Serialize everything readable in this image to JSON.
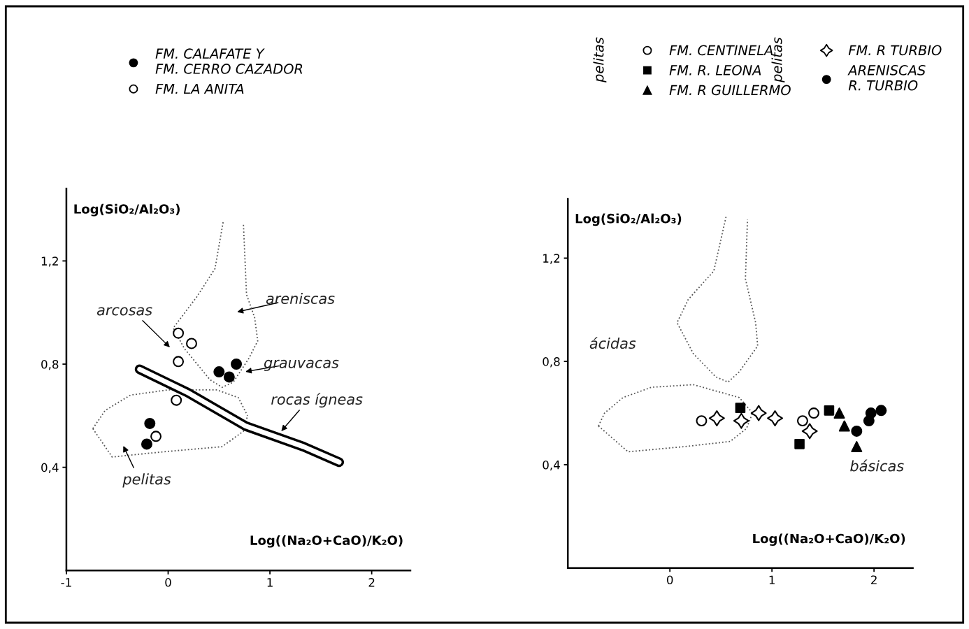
{
  "chart_data": [
    {
      "type": "scatter",
      "xlabel": "Log((Na₂O+CaO)/K₂O)",
      "ylabel": "Log(SiO₂/Al₂O₃)",
      "xlim": [
        -1,
        2.38
      ],
      "ylim": [
        0,
        1.48
      ],
      "xticks": [
        -1,
        0,
        1,
        2
      ],
      "yticks": [
        {
          "value": 0.4,
          "label": "0,4"
        },
        {
          "value": 0.8,
          "label": "0,8"
        },
        {
          "value": 1.2,
          "label": "1,2"
        }
      ],
      "grid": false,
      "legend": "top left",
      "series": [
        {
          "name": "FM. CALAFATE Y\nFM. CERRO CAZADOR",
          "color": "#000000",
          "marker": "circle",
          "x": [
            0.67,
            0.5,
            0.6,
            -0.18,
            -0.21
          ],
          "values": [
            0.8,
            0.77,
            0.75,
            0.57,
            0.49
          ]
        },
        {
          "name": "FM. LA ANITA",
          "color": "#ffffff",
          "marker": "circle",
          "x": [
            0.1,
            0.23,
            0.1,
            0.08,
            -0.12
          ],
          "values": [
            0.92,
            0.88,
            0.81,
            0.66,
            0.52
          ]
        },
        {
          "type": "line",
          "color": "#555555",
          "line_style": "dotted",
          "x": [
            0.54,
            0.46,
            0.28,
            0.05,
            0.16,
            0.41,
            0.53,
            0.64,
            0.79,
            0.88,
            0.85,
            0.77,
            0.74
          ],
          "values": [
            1.35,
            1.17,
            1.06,
            0.94,
            0.86,
            0.74,
            0.71,
            0.73,
            0.82,
            0.89,
            0.98,
            1.07,
            1.34
          ]
        },
        {
          "type": "line",
          "color": "#555555",
          "line_style": "dotted",
          "x": [
            -0.74,
            -0.55,
            -0.05,
            0.53,
            0.74,
            0.78
          ],
          "values": [
            0.55,
            0.44,
            0.46,
            0.48,
            0.54,
            0.6
          ]
        },
        {
          "type": "line",
          "color": "#555555",
          "line_style": "dotted",
          "x": [
            -0.74,
            -0.62,
            -0.37,
            0.0,
            0.48,
            0.69,
            0.78
          ],
          "values": [
            0.55,
            0.62,
            0.68,
            0.7,
            0.7,
            0.67,
            0.6
          ]
        },
        {
          "type": "line",
          "color": "#000000",
          "line_style": "solid",
          "x": [
            -0.28,
            0.19,
            0.76,
            1.33,
            1.68
          ],
          "values": [
            0.78,
            0.69,
            0.56,
            0.48,
            0.42
          ]
        }
      ],
      "annotations": [
        "arcosas",
        "areniscas",
        "grauvacas",
        "rocas ígneas",
        "pelitas"
      ]
    },
    {
      "type": "scatter",
      "xlabel": "Log((Na₂O+CaO)/K₂O)",
      "ylabel": "Log(SiO₂/Al₂O₃)",
      "xlim": [
        -1,
        2.38
      ],
      "ylim": [
        0,
        1.43
      ],
      "xticks": [
        0,
        1,
        2
      ],
      "yticks": [
        {
          "value": 0.4,
          "label": "0,4"
        },
        {
          "value": 0.8,
          "label": "0,8"
        },
        {
          "value": 1.2,
          "label": "1,2"
        }
      ],
      "grid": false,
      "legend": "top right",
      "series": [
        {
          "name": "FM. CENTINELA",
          "color": "#ffffff",
          "marker": "circle",
          "x": [
            0.31,
            1.3,
            1.41
          ],
          "values": [
            0.57,
            0.57,
            0.6
          ]
        },
        {
          "name": "FM. R. LEONA",
          "color": "#000000",
          "marker": "square",
          "x": [
            0.69,
            1.27,
            1.56
          ],
          "values": [
            0.62,
            0.48,
            0.61
          ]
        },
        {
          "name": "FM. R GUILLERMO",
          "color": "#000000",
          "marker": "triangle",
          "x": [
            1.66,
            1.71,
            1.83
          ],
          "values": [
            0.6,
            0.55,
            0.47
          ]
        },
        {
          "name": "FM. R TURBIO",
          "color": "#ffffff",
          "marker": "star",
          "x": [
            0.46,
            0.7,
            0.87,
            1.03,
            1.37
          ],
          "values": [
            0.58,
            0.57,
            0.6,
            0.58,
            0.53
          ]
        },
        {
          "name": "ARENISCAS\nR. TURBIO",
          "color": "#000000",
          "marker": "circle",
          "x": [
            1.83,
            1.95,
            1.97,
            2.07
          ],
          "values": [
            0.53,
            0.57,
            0.6,
            0.61
          ]
        },
        {
          "type": "line",
          "color": "#555555",
          "line_style": "dotted",
          "x": [
            0.55,
            0.43,
            0.18,
            0.07,
            0.23,
            0.45,
            0.57,
            0.68,
            0.86,
            0.84,
            0.74,
            0.76
          ],
          "values": [
            1.36,
            1.15,
            1.04,
            0.95,
            0.83,
            0.74,
            0.72,
            0.76,
            0.86,
            0.95,
            1.12,
            1.35
          ]
        },
        {
          "type": "line",
          "color": "#555555",
          "line_style": "dotted",
          "x": [
            -0.7,
            -0.41,
            0.14,
            0.59,
            0.75,
            0.81
          ],
          "values": [
            0.55,
            0.45,
            0.47,
            0.49,
            0.54,
            0.6
          ]
        },
        {
          "type": "line",
          "color": "#555555",
          "line_style": "dotted",
          "x": [
            -0.7,
            -0.64,
            -0.46,
            -0.18,
            0.23,
            0.68,
            0.81
          ],
          "values": [
            0.55,
            0.6,
            0.66,
            0.7,
            0.71,
            0.66,
            0.6
          ]
        }
      ],
      "annotations": [
        "pelitas",
        "pelitas",
        "ácidas",
        "básicas"
      ]
    }
  ]
}
